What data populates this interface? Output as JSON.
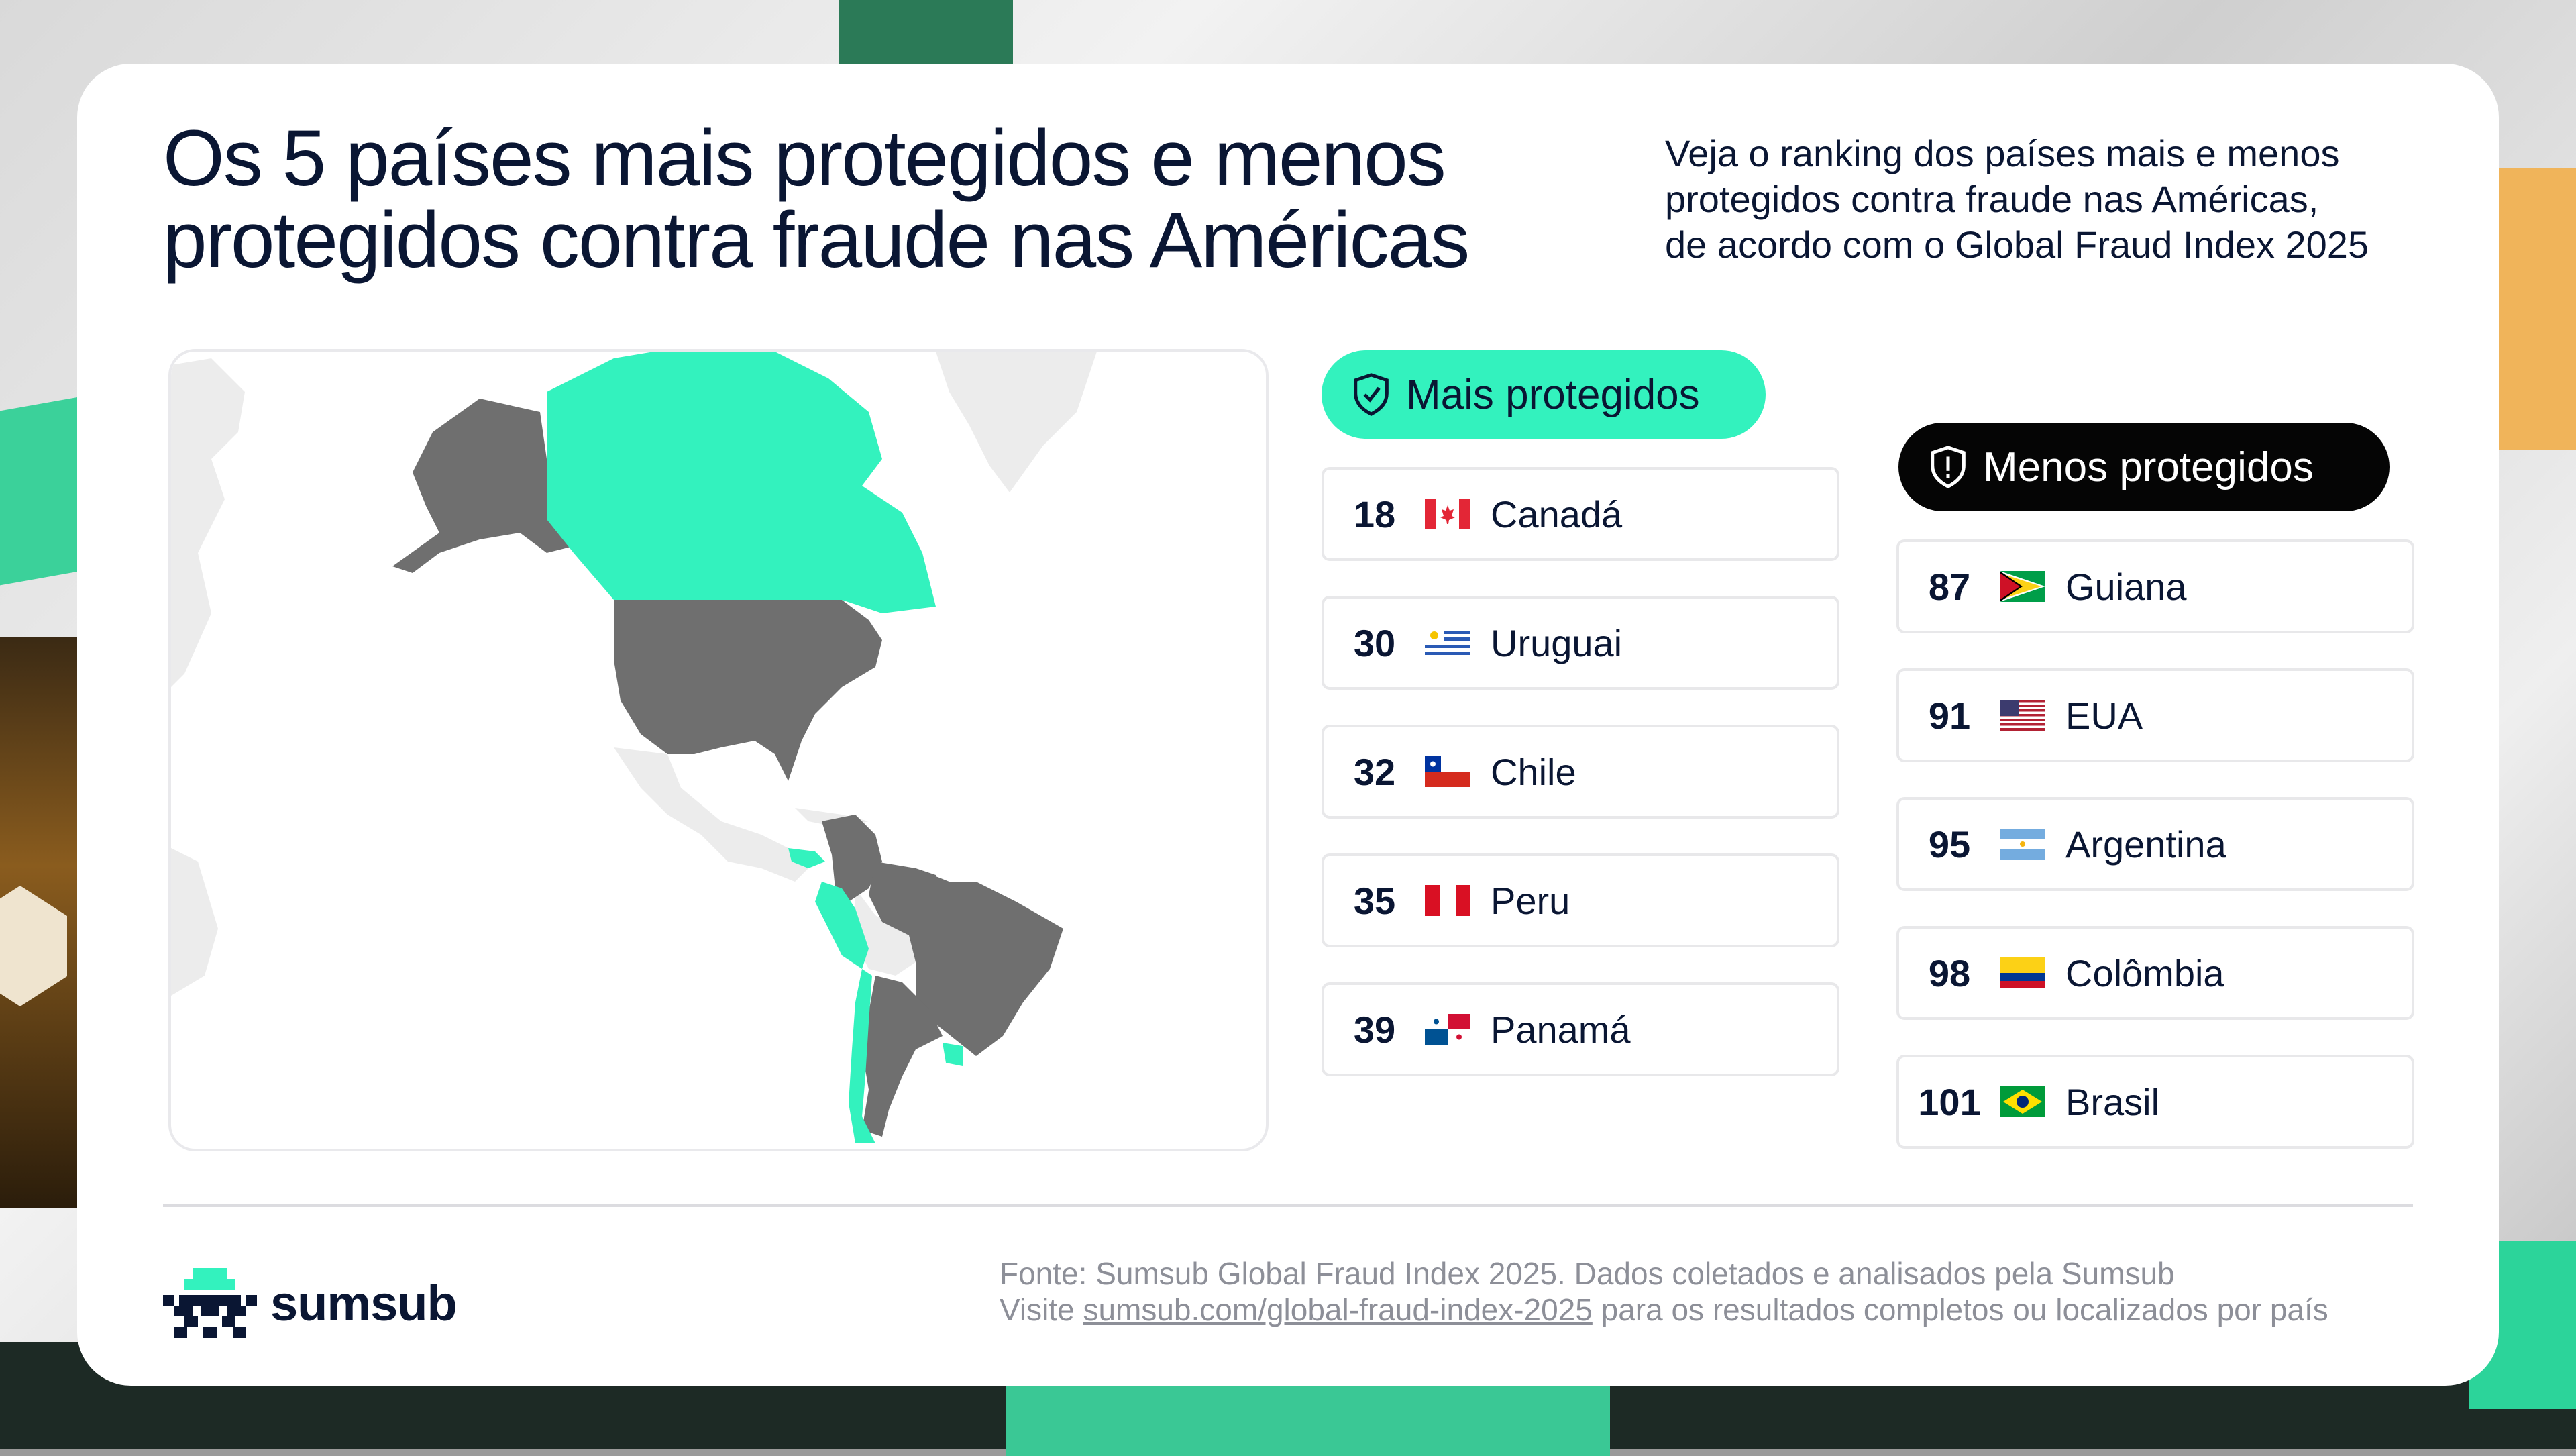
{
  "title": {
    "line1": "Os 5 países mais protegidos e menos",
    "line2": "protegidos contra fraude nas Américas"
  },
  "subtitle": {
    "line1": "Veja o ranking dos países mais e menos",
    "line2": "protegidos contra fraude nas Américas,",
    "line3": "de acordo com o Global Fraud Index 2025"
  },
  "most_protected": {
    "label": "Mais protegidos",
    "icon": "shield-check-icon",
    "color": "#33f2be",
    "items": [
      {
        "rank": "18",
        "country": "Canadá",
        "flag": "canada-flag"
      },
      {
        "rank": "30",
        "country": "Uruguai",
        "flag": "uruguay-flag"
      },
      {
        "rank": "32",
        "country": "Chile",
        "flag": "chile-flag"
      },
      {
        "rank": "35",
        "country": "Peru",
        "flag": "peru-flag"
      },
      {
        "rank": "39",
        "country": "Panamá",
        "flag": "panama-flag"
      }
    ]
  },
  "least_protected": {
    "label": "Menos protegidos",
    "icon": "shield-alert-icon",
    "color": "#050505",
    "items": [
      {
        "rank": "87",
        "country": "Guiana",
        "flag": "guyana-flag"
      },
      {
        "rank": "91",
        "country": "EUA",
        "flag": "usa-flag"
      },
      {
        "rank": "95",
        "country": "Argentina",
        "flag": "argentina-flag"
      },
      {
        "rank": "98",
        "country": "Colômbia",
        "flag": "colombia-flag"
      },
      {
        "rank": "101",
        "country": "Brasil",
        "flag": "brazil-flag"
      }
    ]
  },
  "map": {
    "highlight_most": "#33f2be",
    "highlight_least": "#6f6f6f",
    "other_land": "#ececec"
  },
  "logo": {
    "text": "sumsub",
    "icon": "sumsub-logo-icon"
  },
  "footer": {
    "source": "Fonte: Sumsub Global Fraud Index 2025. Dados coletados e analisados pela Sumsub",
    "visit_prefix": "Visite",
    "link": "sumsub.com/global-fraud-index-2025",
    "visit_suffix": "para os resultados completos ou localizados por país"
  }
}
